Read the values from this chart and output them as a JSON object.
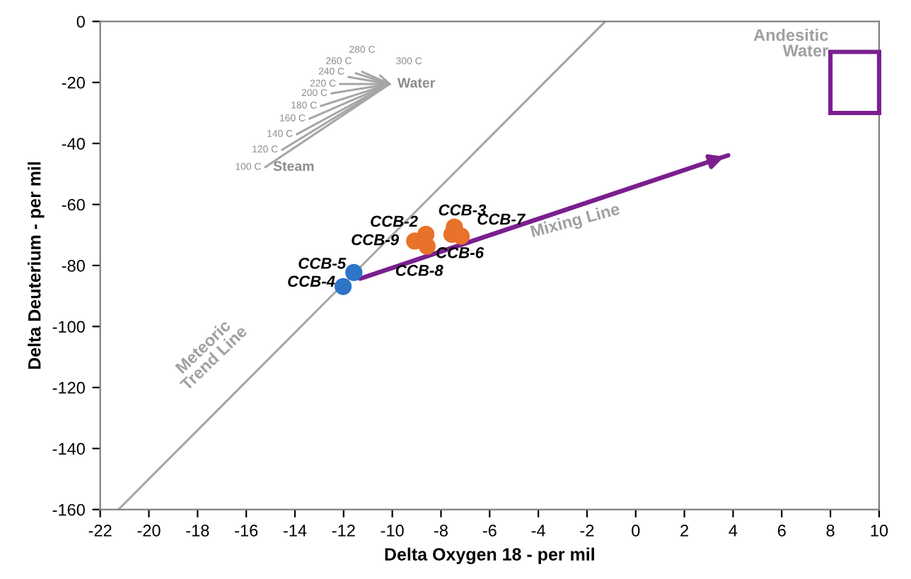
{
  "chart_data": {
    "type": "scatter",
    "xlabel": "Delta Oxygen 18 - per mil",
    "ylabel": "Delta Deuterium - per mil",
    "xlim": [
      -22,
      10
    ],
    "xticks": [
      -22,
      -20,
      -18,
      -16,
      -14,
      -12,
      -10,
      -8,
      -6,
      -4,
      -2,
      0,
      2,
      4,
      6,
      8,
      10
    ],
    "ylim": [
      -160,
      0
    ],
    "yticks": [
      -160,
      -140,
      -120,
      -100,
      -80,
      -60,
      -40,
      -20,
      0
    ],
    "grid": false,
    "legend": false,
    "series": [
      {
        "type": "line",
        "color": "#a6a6a6",
        "x": [
          -21.25,
          -1.25
        ],
        "values": [
          -160,
          0
        ]
      },
      {
        "type": "line",
        "color": "#7b1f8f",
        "x": [
          -11.32,
          3.8
        ],
        "values": [
          -84.3,
          -43.9
        ]
      },
      {
        "type": "line",
        "color": "#a6a6a6",
        "x": [
          -15.22,
          -10.11
        ],
        "values": [
          -47.8,
          -20.5
        ]
      },
      {
        "type": "line",
        "color": "#a6a6a6",
        "x": [
          -14.53,
          -10.11
        ],
        "values": [
          -42.1,
          -20.5
        ]
      },
      {
        "type": "line",
        "color": "#a6a6a6",
        "x": [
          -13.92,
          -10.11
        ],
        "values": [
          -37.0,
          -20.5
        ]
      },
      {
        "type": "line",
        "color": "#a6a6a6",
        "x": [
          -13.4,
          -10.11
        ],
        "values": [
          -31.9,
          -20.5
        ]
      },
      {
        "type": "line",
        "color": "#a6a6a6",
        "x": [
          -12.93,
          -10.11
        ],
        "values": [
          -27.7,
          -20.5
        ]
      },
      {
        "type": "line",
        "color": "#a6a6a6",
        "x": [
          -12.5,
          -10.11
        ],
        "values": [
          -23.6,
          -20.5
        ]
      },
      {
        "type": "line",
        "color": "#a6a6a6",
        "x": [
          -12.15,
          -10.11
        ],
        "values": [
          -20.5,
          -20.5
        ]
      },
      {
        "type": "line",
        "color": "#a6a6a6",
        "x": [
          -11.8,
          -10.11
        ],
        "values": [
          -18.2,
          -20.5
        ]
      },
      {
        "type": "line",
        "color": "#a6a6a6",
        "x": [
          -11.5,
          -10.11
        ],
        "values": [
          -17.0,
          -20.5
        ]
      },
      {
        "type": "line",
        "color": "#a6a6a6",
        "x": [
          -11.24,
          -10.11
        ],
        "values": [
          -16.5,
          -20.5
        ]
      },
      {
        "type": "line",
        "color": "#a6a6a6",
        "x": [
          -10.5,
          -10.11
        ],
        "values": [
          -17.7,
          -20.5
        ]
      },
      {
        "color": "#2e75c8",
        "x": [
          -12.02,
          -11.58
        ],
        "values": [
          -86.9,
          -82.3
        ]
      },
      {
        "color": "#e8722a",
        "x": [
          -9.08,
          -8.62,
          -8.57,
          -7.45,
          -7.55,
          -7.17
        ],
        "values": [
          -72.0,
          -69.8,
          -73.7,
          -67.4,
          -69.8,
          -70.4
        ]
      }
    ],
    "annotations": [
      {
        "text": "CCB-4",
        "x": -12.02,
        "y": -86.9
      },
      {
        "text": "CCB-5",
        "x": -11.58,
        "y": -82.3
      },
      {
        "text": "CCB-9",
        "x": -9.08,
        "y": -72.0
      },
      {
        "text": "CCB-2",
        "x": -8.62,
        "y": -69.8
      },
      {
        "text": "CCB-8",
        "x": -8.57,
        "y": -73.7
      },
      {
        "text": "CCB-3",
        "x": -7.45,
        "y": -67.4
      },
      {
        "text": "CCB-6",
        "x": -7.55,
        "y": -69.8
      },
      {
        "text": "CCB-7",
        "x": -7.17,
        "y": -70.4
      },
      {
        "text": "100 C",
        "x": -15.22,
        "y": -47.8
      },
      {
        "text": "120 C",
        "x": -14.53,
        "y": -42.1
      },
      {
        "text": "140 C",
        "x": -13.92,
        "y": -37.0
      },
      {
        "text": "160 C",
        "x": -13.4,
        "y": -31.9
      },
      {
        "text": "180 C",
        "x": -12.93,
        "y": -27.7
      },
      {
        "text": "200 C",
        "x": -12.5,
        "y": -23.6
      },
      {
        "text": "220 C",
        "x": -12.15,
        "y": -20.5
      },
      {
        "text": "240 C",
        "x": -11.8,
        "y": -18.2
      },
      {
        "text": "260 C",
        "x": -11.5,
        "y": -17.0
      },
      {
        "text": "280 C",
        "x": -11.24,
        "y": -16.5
      },
      {
        "text": "300 C",
        "x": -10.5,
        "y": -17.7
      },
      {
        "text": "Steam",
        "x": -15.22,
        "y": -47.8
      },
      {
        "text": "Water",
        "x": -10.11,
        "y": -20.5
      },
      "Mixing Line",
      "Meteoric\nTrend Line",
      "Andesitic\nWater"
    ]
  }
}
